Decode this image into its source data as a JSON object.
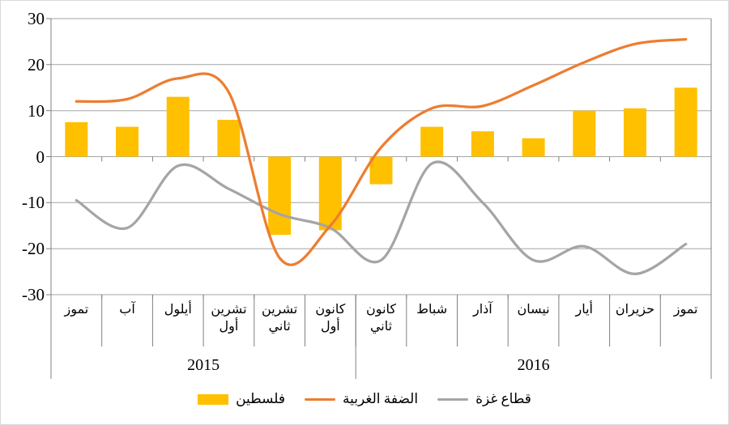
{
  "chart_data": {
    "type": "combo-bar-line",
    "categories": [
      "تموز",
      "آب",
      "أيلول",
      "تشرين أول",
      "تشرين ثاني",
      "كانون أول",
      "كانون ثاني",
      "شباط",
      "آذار",
      "نيسان",
      "أيار",
      "حزيران",
      "تموز"
    ],
    "category_display": [
      [
        "تموز"
      ],
      [
        "آب"
      ],
      [
        "أيلول"
      ],
      [
        "تشرين",
        "أول"
      ],
      [
        "تشرين",
        "ثاني"
      ],
      [
        "كانون",
        "أول"
      ],
      [
        "كانون",
        "ثاني"
      ],
      [
        "شباط"
      ],
      [
        "آذار"
      ],
      [
        "نيسان"
      ],
      [
        "أيار"
      ],
      [
        "حزيران"
      ],
      [
        "تموز"
      ]
    ],
    "year_groups": [
      {
        "label": "2015",
        "start": 0,
        "end": 5
      },
      {
        "label": "2016",
        "start": 6,
        "end": 12
      }
    ],
    "series": [
      {
        "name": "فلسطين",
        "type": "bar",
        "color": "#FFC000",
        "values": [
          7.5,
          6.5,
          13,
          8,
          -17,
          -16,
          -6,
          6.5,
          5.5,
          4,
          10,
          10.5,
          15
        ]
      },
      {
        "name": "الضفة الغربية",
        "type": "line",
        "color": "#ED7D31",
        "values": [
          12,
          12.5,
          17,
          14,
          -22,
          -15,
          2,
          10.5,
          11,
          15.5,
          20.5,
          24.5,
          25.5
        ]
      },
      {
        "name": "قطاع غزة",
        "type": "line",
        "color": "#A5A5A5",
        "values": [
          -9.5,
          -15.5,
          -2,
          -7,
          -12.5,
          -15.5,
          -22.5,
          -1.5,
          -10,
          -22.5,
          -19.5,
          -25.5,
          -19
        ]
      }
    ],
    "ylim": [
      -30,
      30
    ],
    "yticks": [
      30,
      20,
      10,
      0,
      -10,
      -20,
      -30
    ],
    "grid": true,
    "legend_position": "bottom",
    "grid_color": "#A6A6A6",
    "axis_color": "#808080"
  },
  "legend": {
    "items": [
      {
        "label": "فلسطين",
        "marker": "bar-swatch",
        "color": "#FFC000"
      },
      {
        "label": "الضفة الغربية",
        "marker": "line",
        "color": "#ED7D31"
      },
      {
        "label": "قطاع غزة",
        "marker": "line",
        "color": "#A5A5A5"
      }
    ]
  }
}
